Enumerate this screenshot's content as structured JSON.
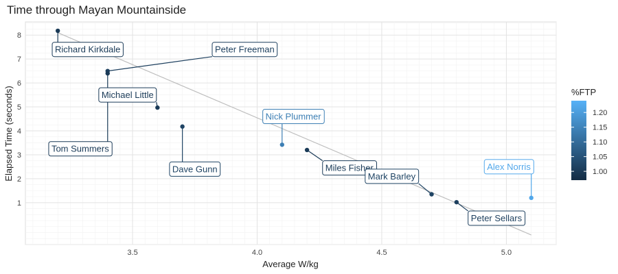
{
  "chart_data": {
    "type": "scatter",
    "title": "Time through Mayan Mountainside",
    "xlabel": "Average W/kg",
    "ylabel": "Elapsed Time (seconds)",
    "xlim": [
      3.07,
      5.2
    ],
    "ylim": [
      -0.75,
      8.55
    ],
    "x_ticks": [
      3.5,
      4.0,
      4.5,
      5.0
    ],
    "x_tick_labels": [
      "3.5",
      "4.0",
      "4.5",
      "5.0"
    ],
    "y_ticks": [
      1,
      2,
      3,
      4,
      5,
      6,
      7,
      8
    ],
    "y_tick_labels": [
      "1",
      "2",
      "3",
      "4",
      "5",
      "6",
      "7",
      "8"
    ],
    "grid": true,
    "legend": {
      "title": "%FTP",
      "placement": "right",
      "range": [
        0.97,
        1.24
      ],
      "ticks": [
        1.0,
        1.05,
        1.1,
        1.15,
        1.2
      ],
      "tick_labels": [
        "1.00",
        "1.05",
        "1.10",
        "1.15",
        "1.20"
      ],
      "color_low": "#132B43",
      "color_high": "#56B1F7"
    },
    "trend_line": {
      "color": "#bdbdbd",
      "from": [
        3.2,
        8.1
      ],
      "to": [
        5.1,
        -0.35
      ]
    },
    "points": [
      {
        "name": "Richard Kirkdale",
        "x": 3.2,
        "y": 8.18,
        "ftp": 1.0,
        "label_at": [
          3.32,
          7.4
        ]
      },
      {
        "name": "Peter Freeman",
        "x": 3.4,
        "y": 6.5,
        "ftp": 1.01,
        "label_at": [
          3.95,
          7.4
        ]
      },
      {
        "name": "Tom Summers",
        "x": 3.4,
        "y": 6.4,
        "ftp": 1.0,
        "label_at": [
          3.29,
          3.25
        ]
      },
      {
        "name": "Michael Little",
        "x": 3.6,
        "y": 4.97,
        "ftp": 1.0,
        "label_at": [
          3.48,
          5.5
        ]
      },
      {
        "name": "Dave Gunn",
        "x": 3.7,
        "y": 4.18,
        "ftp": 1.02,
        "label_at": [
          3.75,
          2.4
        ]
      },
      {
        "name": "Nick Plummer",
        "x": 4.1,
        "y": 3.42,
        "ftp": 1.14,
        "label_at": [
          4.145,
          4.6
        ]
      },
      {
        "name": "Miles Fisher",
        "x": 4.2,
        "y": 3.2,
        "ftp": 1.0,
        "label_at": [
          4.37,
          2.45
        ]
      },
      {
        "name": "Mark Barley",
        "x": 4.7,
        "y": 1.35,
        "ftp": 1.02,
        "label_at": [
          4.54,
          2.1
        ]
      },
      {
        "name": "Peter Sellars",
        "x": 4.8,
        "y": 1.02,
        "ftp": 1.01,
        "label_at": [
          4.96,
          0.35
        ]
      },
      {
        "name": "Alex Norris",
        "x": 5.1,
        "y": 1.2,
        "ftp": 1.22,
        "label_at": [
          5.01,
          2.5
        ]
      }
    ]
  }
}
